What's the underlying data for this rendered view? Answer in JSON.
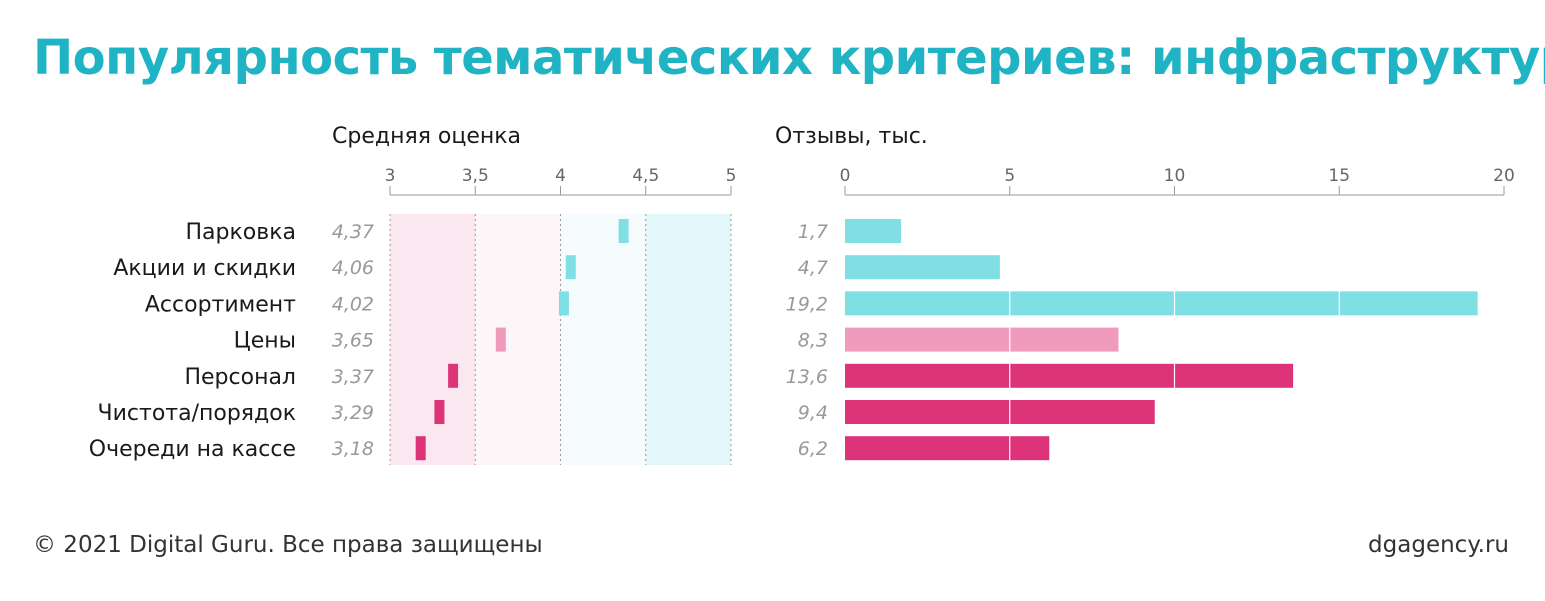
{
  "title": "Популярность тематических критериев: инфраструктура",
  "footer": {
    "copyright": "© 2021 Digital Guru. Все права защищены",
    "site": "dgagency.ru"
  },
  "colors": {
    "title": "#1fb3c3",
    "high": "#80dfe4",
    "mid": "#f09abc",
    "low": "#dd3479",
    "zone_low": "#fbe7f0",
    "zone_mid": "#fdf6f9",
    "zone_upper": "#f6fbfd",
    "zone_high": "#e3f6fa"
  },
  "chart_data": [
    {
      "type": "bar",
      "title": "Средняя оценка",
      "orientation": "horizontal",
      "categories": [
        "Парковка",
        "Акции и скидки",
        "Ассортимент",
        "Цены",
        "Персонал",
        "Чистота/порядок",
        "Очереди на кассе"
      ],
      "values": [
        4.37,
        4.06,
        4.02,
        3.65,
        3.37,
        3.29,
        3.18
      ],
      "value_labels": [
        "4,37",
        "4,06",
        "4,02",
        "3,65",
        "3,37",
        "3,29",
        "3,18"
      ],
      "color_groups": [
        "high",
        "high",
        "high",
        "mid",
        "low",
        "low",
        "low"
      ],
      "xlim": [
        3,
        5
      ],
      "ticks": [
        3,
        3.5,
        4,
        4.5,
        5
      ],
      "tick_labels": [
        "3",
        "3,5",
        "4",
        "4,5",
        "5"
      ]
    },
    {
      "type": "bar",
      "title": "Отзывы, тыс.",
      "orientation": "horizontal",
      "categories": [
        "Парковка",
        "Акции и скидки",
        "Ассортимент",
        "Цены",
        "Персонал",
        "Чистота/порядок",
        "Очереди на кассе"
      ],
      "values": [
        1.7,
        4.7,
        19.2,
        8.3,
        13.6,
        9.4,
        6.2
      ],
      "value_labels": [
        "1,7",
        "4,7",
        "19,2",
        "8,3",
        "13,6",
        "9,4",
        "6,2"
      ],
      "color_groups": [
        "high",
        "high",
        "high",
        "mid",
        "low",
        "low",
        "low"
      ],
      "xlim": [
        0,
        20
      ],
      "ticks": [
        0,
        5,
        10,
        15,
        20
      ],
      "tick_labels": [
        "0",
        "5",
        "10",
        "15",
        "20"
      ]
    }
  ]
}
